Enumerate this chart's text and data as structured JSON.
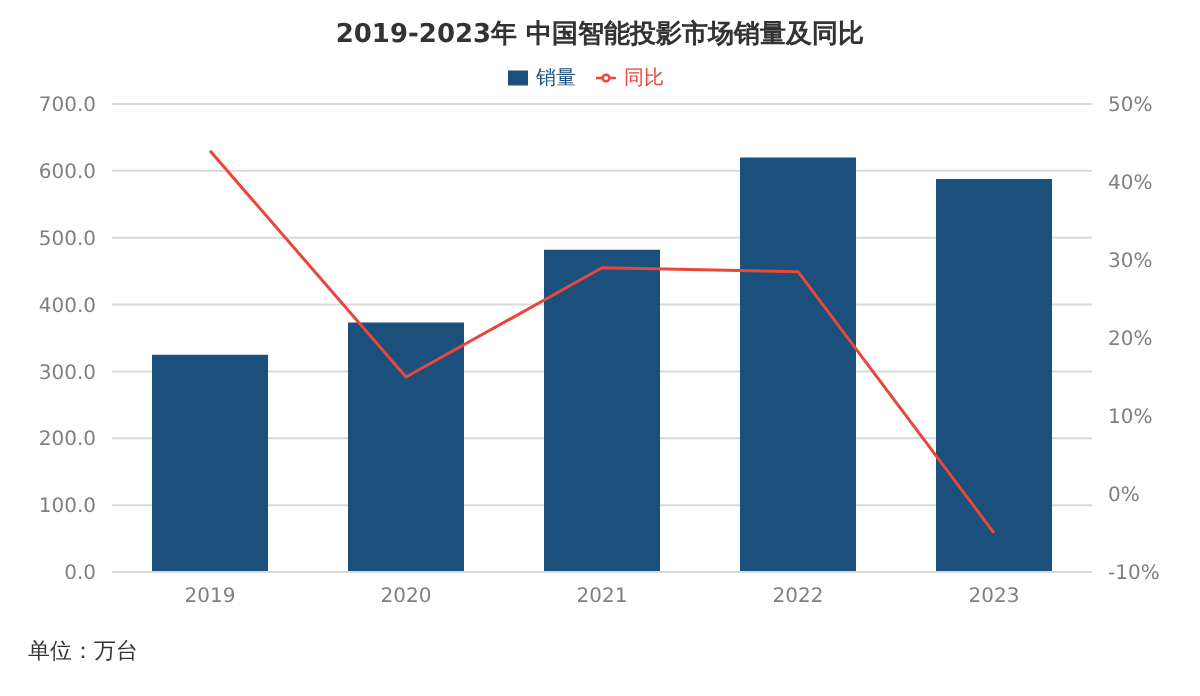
{
  "chart_data": {
    "type": "bar",
    "title": "2019-2023年 中国智能投影市场销量及同比",
    "categories": [
      "2019",
      "2020",
      "2021",
      "2022",
      "2023"
    ],
    "series": [
      {
        "name": "销量",
        "color": "#1b4f7c",
        "values": [
          325,
          373,
          482,
          620,
          588
        ]
      },
      {
        "name": "同比",
        "type": "line",
        "color": "#e8473c",
        "axis": "y2",
        "values": [
          44,
          15,
          29,
          28.5,
          -5
        ]
      }
    ],
    "ylim": [
      0,
      700
    ],
    "yticks": [
      {
        "value": 0,
        "label": "0.0"
      },
      {
        "value": 100,
        "label": "100.0"
      },
      {
        "value": 200,
        "label": "200.0"
      },
      {
        "value": 300,
        "label": "300.0"
      },
      {
        "value": 400,
        "label": "400.0"
      },
      {
        "value": 500,
        "label": "500.0"
      },
      {
        "value": 600,
        "label": "600.0"
      },
      {
        "value": 700,
        "label": "700.0"
      }
    ],
    "y2lim": [
      -10,
      50
    ],
    "y2ticks": [
      {
        "value": -10,
        "label": "-10%"
      },
      {
        "value": 0,
        "label": "0%"
      },
      {
        "value": 10,
        "label": "10%"
      },
      {
        "value": 20,
        "label": "20%"
      },
      {
        "value": 30,
        "label": "30%"
      },
      {
        "value": 40,
        "label": "40%"
      },
      {
        "value": 50,
        "label": "50%"
      }
    ],
    "grid": "y",
    "legend": "top",
    "annotations": [
      "单位：万台"
    ]
  }
}
